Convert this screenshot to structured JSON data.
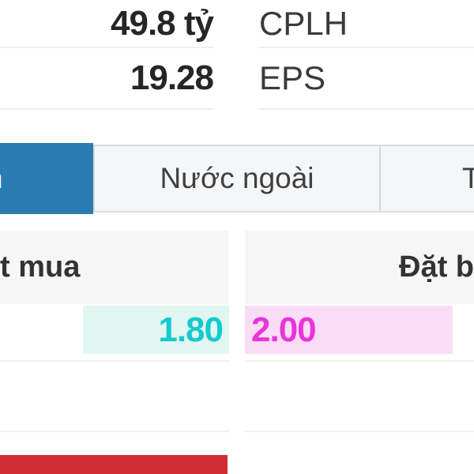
{
  "stats": {
    "rows": [
      {
        "value": "49.8 tỷ",
        "label": "CPLH"
      },
      {
        "value": "19.28",
        "label": "EPS"
      }
    ]
  },
  "tabs": {
    "active_label_fragment": "n",
    "foreign_label": "Nước ngoài",
    "right_label_fragment": "T"
  },
  "order_book": {
    "buy_header": "t mua",
    "sell_header": "Đặt b",
    "rows": [
      {
        "buy_value": "1.80",
        "sell_value": "2.00"
      }
    ]
  },
  "colors": {
    "active_tab_blue": "#2b7cb2",
    "buy_text": "#13cbcd",
    "buy_bg": "#e1f5f1",
    "sell_text": "#ea33d9",
    "sell_bg": "#fbdcf7",
    "bottom_bar_red": "#cf2d34"
  }
}
